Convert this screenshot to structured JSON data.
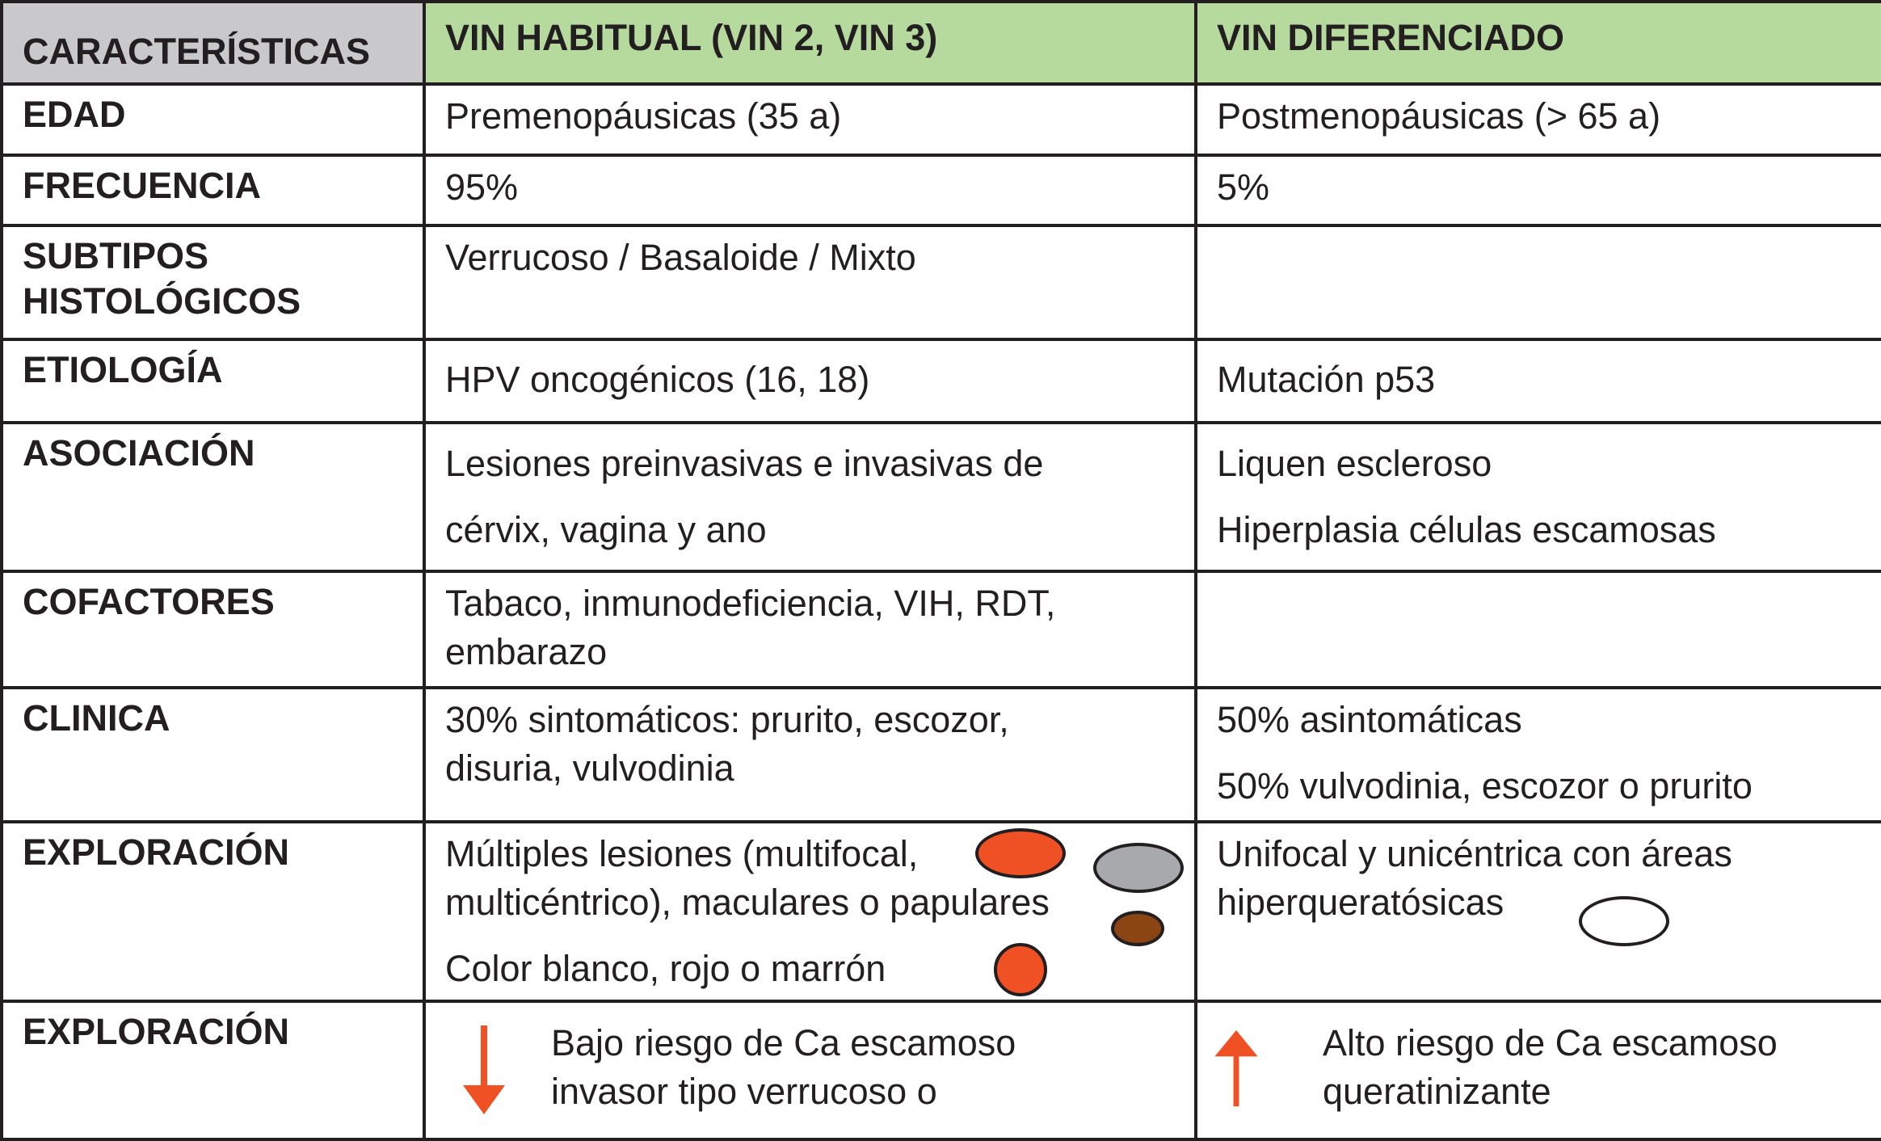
{
  "header": [
    "CARACTERÍSTICAS",
    "VIN HABITUAL (VIN 2, VIN 3)",
    "VIN DIFERENCIADO"
  ],
  "rows": [
    {
      "label": [
        "EDAD"
      ],
      "habitual": [
        "Premenopáusicas (35 a)"
      ],
      "diferenciado": [
        "Postmenopáusicas (> 65 a)"
      ]
    },
    {
      "label": [
        "FRECUENCIA"
      ],
      "habitual": [
        "95%"
      ],
      "diferenciado": [
        "5%"
      ]
    },
    {
      "label": [
        "SUBTIPOS",
        "HISTOLÓGICOS"
      ],
      "habitual": [
        "Verrucoso / Basaloide / Mixto"
      ],
      "diferenciado": []
    },
    {
      "label": [
        "ETIOLOGÍA"
      ],
      "habitual": [
        "HPV oncogénicos (16, 18)"
      ],
      "diferenciado": [
        "Mutación p53"
      ]
    },
    {
      "label": [
        "ASOCIACIÓN"
      ],
      "habitual": [
        "Lesiones preinvasivas e invasivas de",
        "cérvix, vagina y ano"
      ],
      "diferenciado": [
        "Liquen escleroso",
        "Hiperplasia células escamosas"
      ]
    },
    {
      "label": [
        "COFACTORES"
      ],
      "habitual": [
        "Tabaco, inmunodeficiencia, VIH, RDT,",
        "embarazo"
      ],
      "diferenciado": []
    },
    {
      "label": [
        "CLINICA"
      ],
      "habitual": [
        "30% sintomáticos: prurito, escozor,",
        "disuria, vulvodinia"
      ],
      "diferenciado": [
        "50% asintomáticas",
        "50% vulvodinia, escozor o prurito"
      ]
    },
    {
      "label": [
        "EXPLORACIÓN"
      ],
      "habitual": [
        "Múltiples lesiones (multifocal,",
        "multicéntrico), maculares o papulares",
        "Color blanco, rojo o marrón"
      ],
      "diferenciado": [
        "Unifocal y unicéntrica con áreas",
        "hiperqueratósicas"
      ]
    },
    {
      "label": [
        "EXPLORACIÓN"
      ],
      "habitual": [
        "Bajo riesgo de Ca escamoso",
        "invasor tipo verrucoso o"
      ],
      "diferenciado": [
        "Alto riesgo de Ca escamoso",
        "queratinizante"
      ]
    }
  ],
  "colors": {
    "header_gray": "#c9c9cb",
    "header_green": "#b6da9e",
    "red": "#ef5124",
    "gray": "#a7a9ac",
    "brown": "#8b4513",
    "arrow": "#ef5124"
  }
}
